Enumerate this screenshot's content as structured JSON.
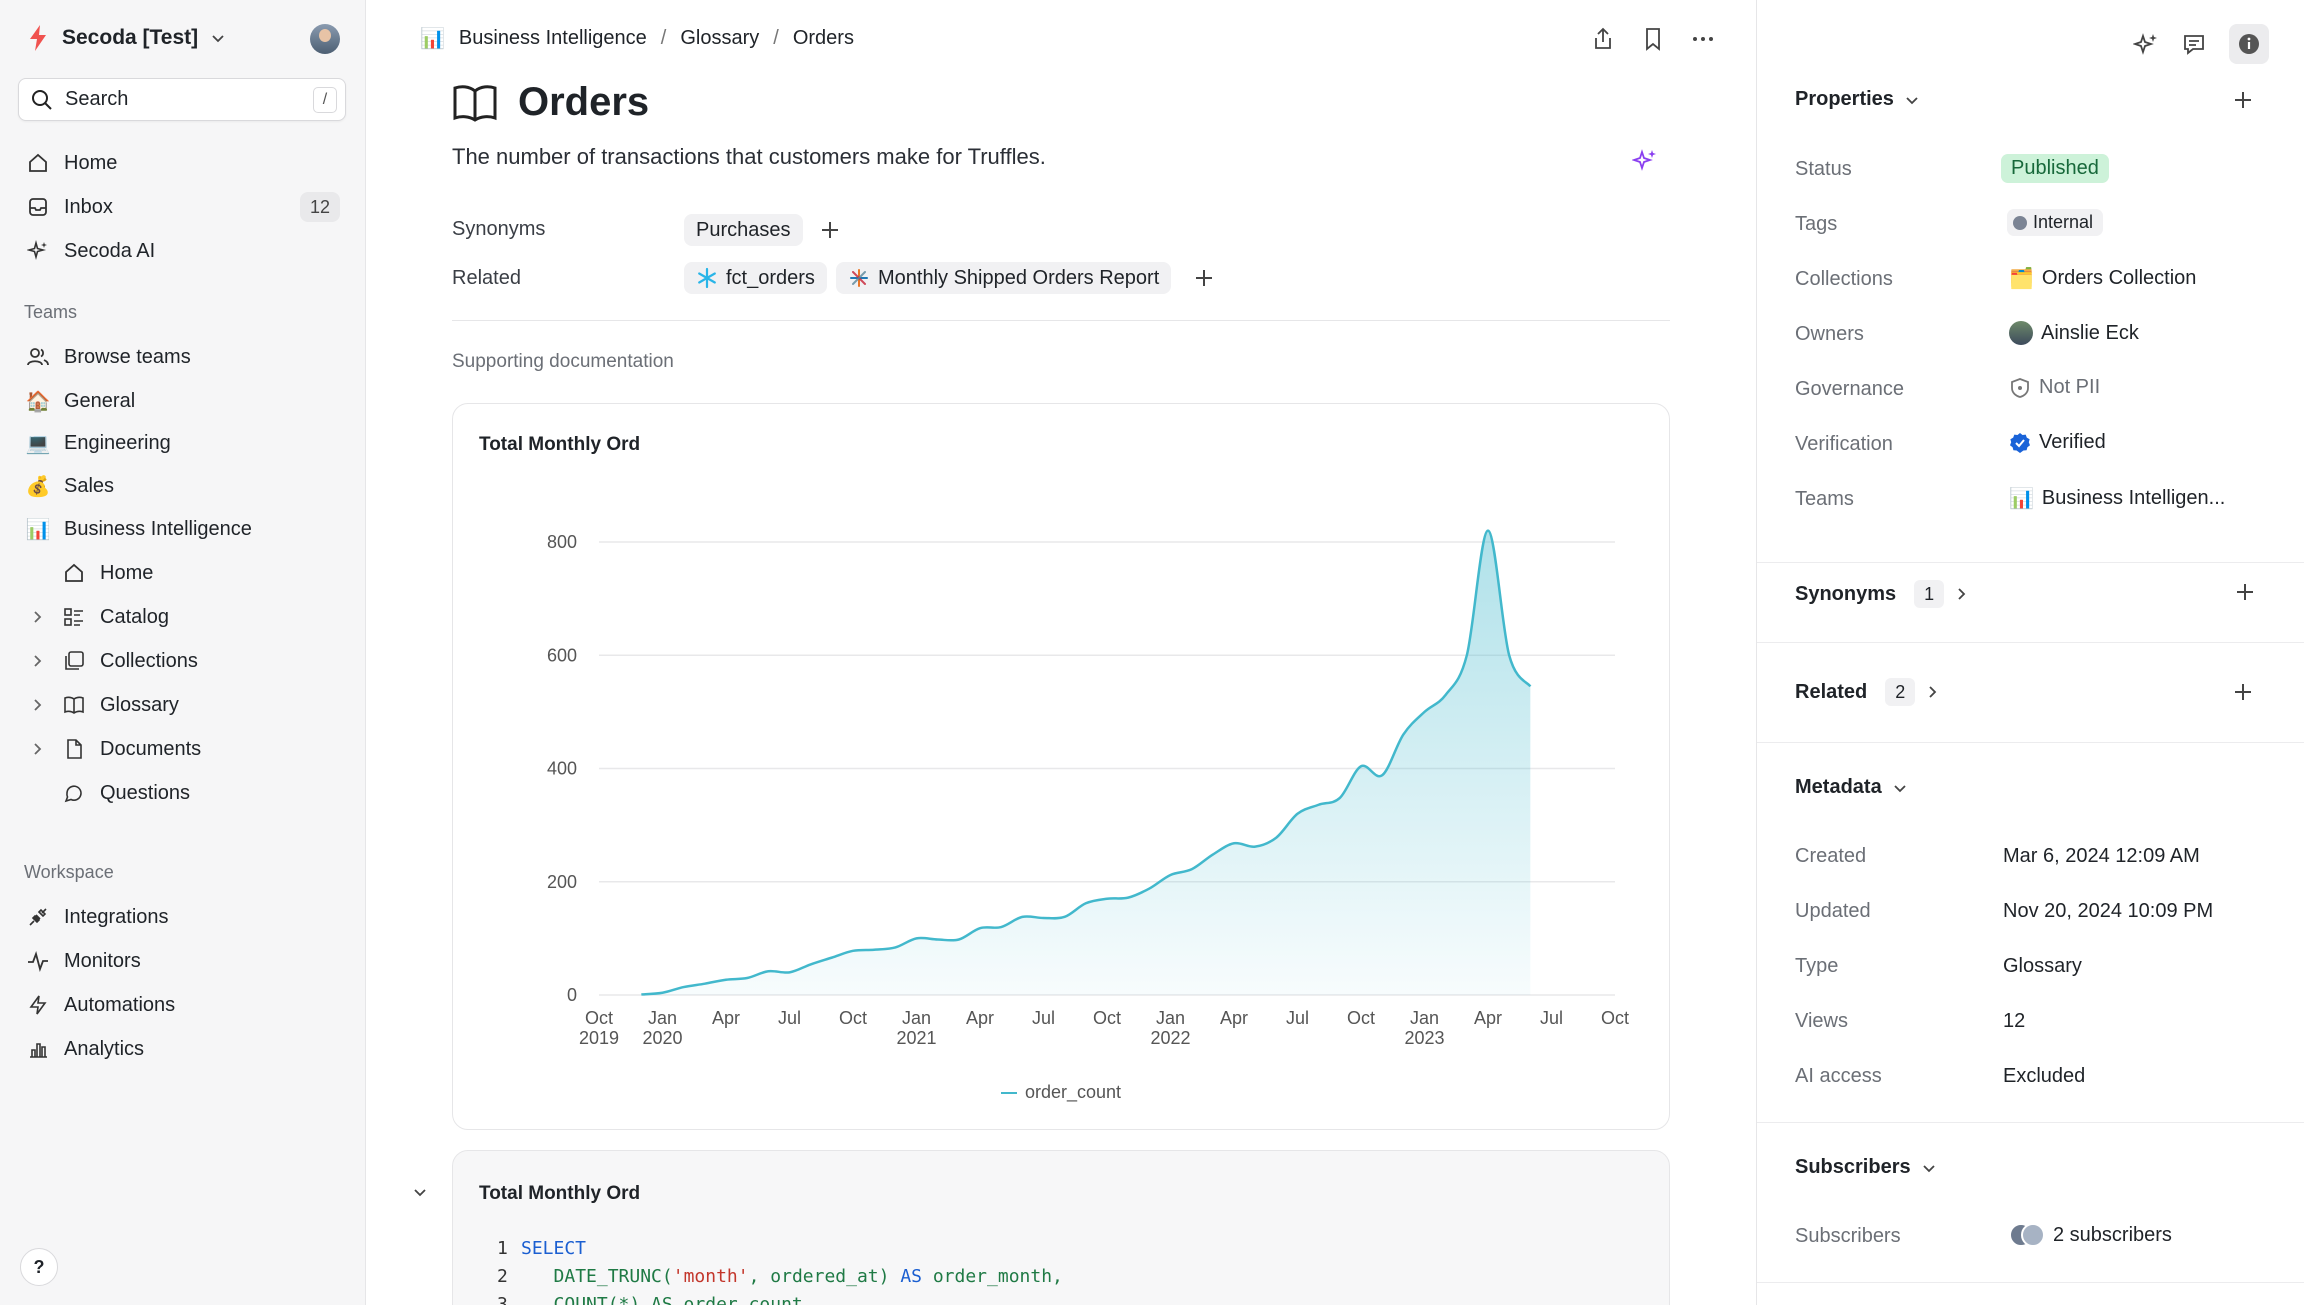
{
  "workspace": {
    "name": "Secoda [Test]"
  },
  "search": {
    "placeholder": "Search",
    "shortcut": "/"
  },
  "nav": [
    {
      "label": "Home",
      "icon": "home-icon"
    },
    {
      "label": "Inbox",
      "icon": "inbox-icon",
      "count": "12"
    },
    {
      "label": "Secoda AI",
      "icon": "sparkle-icon"
    }
  ],
  "teams_section": "Teams",
  "teams": [
    {
      "label": "Browse teams",
      "icon": "users-icon"
    },
    {
      "label": "General",
      "icon": "🏠"
    },
    {
      "label": "Engineering",
      "icon": "💻"
    },
    {
      "label": "Sales",
      "icon": "💰"
    },
    {
      "label": "Business Intelligence",
      "icon": "📊"
    }
  ],
  "team_children": [
    {
      "label": "Home",
      "icon": "home-icon"
    },
    {
      "label": "Catalog",
      "icon": "catalog-icon"
    },
    {
      "label": "Collections",
      "icon": "collections-icon"
    },
    {
      "label": "Glossary",
      "icon": "book-icon"
    },
    {
      "label": "Documents",
      "icon": "document-icon"
    },
    {
      "label": "Questions",
      "icon": "question-icon"
    }
  ],
  "workspace_section": "Workspace",
  "workspace_items": [
    {
      "label": "Integrations",
      "icon": "plug-icon"
    },
    {
      "label": "Monitors",
      "icon": "pulse-icon"
    },
    {
      "label": "Automations",
      "icon": "bolt-icon"
    },
    {
      "label": "Analytics",
      "icon": "bar-chart-icon"
    }
  ],
  "help": "?",
  "breadcrumb": {
    "team_icon": "📊",
    "team": "Business Intelligence",
    "sep": "/",
    "section": "Glossary",
    "current": "Orders"
  },
  "page": {
    "title": "Orders",
    "description": "The number of transactions that customers make for Truffles.",
    "synonyms_label": "Synonyms",
    "synonyms": [
      "Purchases"
    ],
    "related_label": "Related",
    "related": [
      "fct_orders",
      "Monthly Shipped Orders Report"
    ],
    "supporting": "Supporting documentation"
  },
  "chart_card": {
    "title": "Total Monthly Ord",
    "legend": "order_count"
  },
  "chart_data": {
    "type": "area",
    "title": "Total Monthly Ord",
    "series": [
      {
        "name": "order_count",
        "color": "#42b8cc"
      }
    ],
    "x": [
      "2019-12",
      "2020-01",
      "2020-02",
      "2020-03",
      "2020-04",
      "2020-05",
      "2020-06",
      "2020-07",
      "2020-08",
      "2020-09",
      "2020-10",
      "2020-11",
      "2020-12",
      "2021-01",
      "2021-02",
      "2021-03",
      "2021-04",
      "2021-05",
      "2021-06",
      "2021-07",
      "2021-08",
      "2021-09",
      "2021-10",
      "2021-11",
      "2021-12",
      "2022-01",
      "2022-02",
      "2022-03",
      "2022-04",
      "2022-05",
      "2022-06",
      "2022-07",
      "2022-08",
      "2022-09",
      "2022-10",
      "2022-11",
      "2022-12",
      "2023-01",
      "2023-02",
      "2023-03",
      "2023-04",
      "2023-05",
      "2023-06",
      "2023-07",
      "2023-08"
    ],
    "values": [
      1,
      4,
      14,
      20,
      27,
      30,
      42,
      40,
      54,
      66,
      78,
      80,
      84,
      100,
      98,
      98,
      118,
      120,
      138,
      136,
      138,
      162,
      170,
      172,
      188,
      212,
      222,
      248,
      268,
      262,
      278,
      320,
      336,
      348,
      404,
      388,
      460,
      500,
      530,
      600,
      820,
      600,
      545,
      0,
      0
    ],
    "x_ticks": [
      [
        "Oct",
        "2019"
      ],
      [
        "Jan",
        "2020"
      ],
      [
        "Apr",
        ""
      ],
      [
        "Jul",
        ""
      ],
      [
        "Oct",
        ""
      ],
      [
        "Jan",
        "2021"
      ],
      [
        "Apr",
        ""
      ],
      [
        "Jul",
        ""
      ],
      [
        "Oct",
        ""
      ],
      [
        "Jan",
        "2022"
      ],
      [
        "Apr",
        ""
      ],
      [
        "Jul",
        ""
      ],
      [
        "Oct",
        ""
      ],
      [
        "Jan",
        "2023"
      ],
      [
        "Apr",
        ""
      ],
      [
        "Jul",
        ""
      ],
      [
        "Oct",
        ""
      ]
    ],
    "y_ticks": [
      "0",
      "200",
      "400",
      "600",
      "800"
    ],
    "ylim": [
      0,
      800
    ],
    "grid": true,
    "legend_position": "bottom"
  },
  "sql_card": {
    "title": "Total Monthly Ord",
    "lines": [
      "1",
      "2",
      "3"
    ],
    "code_kw_select": "SELECT",
    "code_fn": "DATE_TRUNC(",
    "code_str": "'month'",
    "code_rest": ", ordered_at) ",
    "code_as": "AS",
    "code_alias": " order_month,",
    "code_line3": "COUNT(*) AS order_count"
  },
  "right_panel": {
    "properties_title": "Properties",
    "properties": [
      {
        "label": "Status",
        "value": "Published"
      },
      {
        "label": "Tags",
        "value": "Internal"
      },
      {
        "label": "Collections",
        "value": "Orders Collection",
        "icon": "🗂️"
      },
      {
        "label": "Owners",
        "value": "Ainslie Eck"
      },
      {
        "label": "Governance",
        "value": "Not PII"
      },
      {
        "label": "Verification",
        "value": "Verified"
      },
      {
        "label": "Teams",
        "value": "Business Intelligen...",
        "icon": "📊"
      }
    ],
    "synonyms": {
      "title": "Synonyms",
      "count": "1"
    },
    "related": {
      "title": "Related",
      "count": "2"
    },
    "metadata_title": "Metadata",
    "metadata": [
      {
        "label": "Created",
        "value": "Mar 6, 2024 12:09 AM"
      },
      {
        "label": "Updated",
        "value": "Nov 20, 2024 10:09 PM"
      },
      {
        "label": "Type",
        "value": "Glossary"
      },
      {
        "label": "Views",
        "value": "12"
      },
      {
        "label": "AI access",
        "value": "Excluded"
      }
    ],
    "subscribers_title": "Subscribers",
    "subscribers_label": "Subscribers",
    "subscribers_value": "2 subscribers"
  },
  "colors": {
    "accent": "#42b8cc",
    "published_bg": "#cdf2d9",
    "published_fg": "#17683a",
    "logo": "#f0524f",
    "ai": "#8a3ff0"
  }
}
